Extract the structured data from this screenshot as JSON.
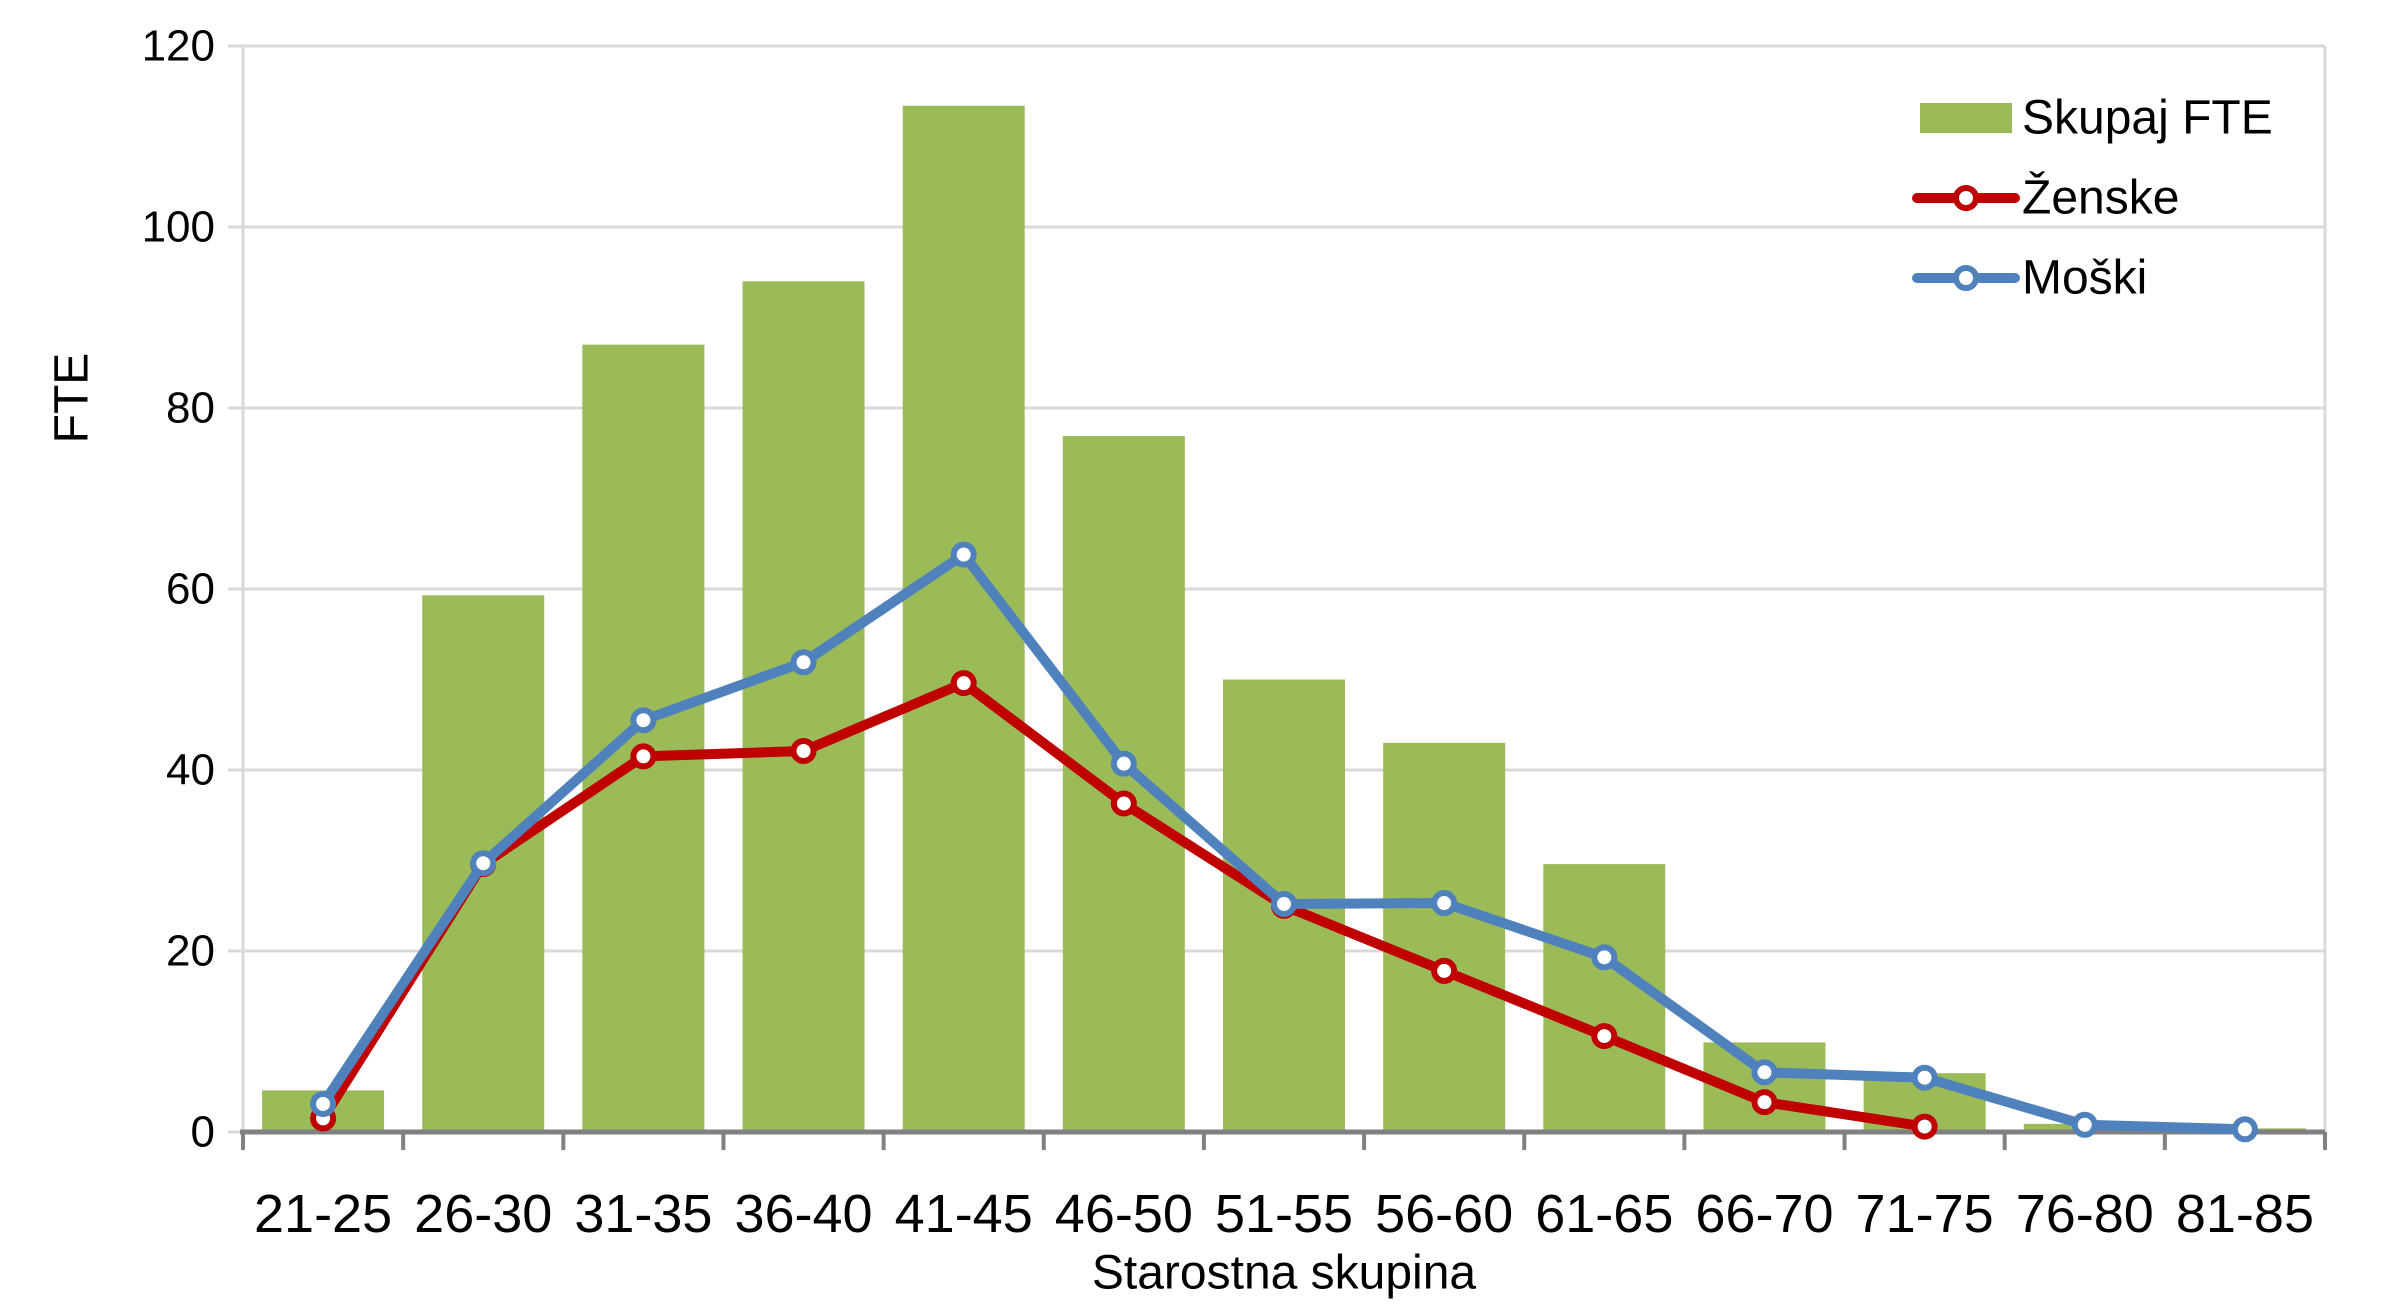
{
  "chart_data": {
    "type": "combo",
    "title": "",
    "xlabel": "Starostna skupina",
    "ylabel": "FTE",
    "ylim": [
      0,
      120
    ],
    "ytick_step": 20,
    "yticks": [
      "0",
      "20",
      "40",
      "60",
      "80",
      "100",
      "120"
    ],
    "grid": true,
    "legend_position": "top-right",
    "categories": [
      "21-25",
      "26-30",
      "31-35",
      "36-40",
      "41-45",
      "46-50",
      "51-55",
      "56-60",
      "61-65",
      "66-70",
      "71-75",
      "76-80",
      "81-85"
    ],
    "series": [
      {
        "name": "Skupaj FTE",
        "type": "bar",
        "color": "#9BBB59",
        "values": [
          4.6,
          59.3,
          87.0,
          94.0,
          113.4,
          76.9,
          50.0,
          43.0,
          29.6,
          9.9,
          6.5,
          0.9,
          0.4
        ]
      },
      {
        "name": "Ženske",
        "type": "line",
        "color": "#C00000",
        "values": [
          1.5,
          29.6,
          41.5,
          42.1,
          49.6,
          36.3,
          25.0,
          17.8,
          10.6,
          3.3,
          0.6,
          null,
          null
        ]
      },
      {
        "name": "Moški",
        "type": "line",
        "color": "#4F81BD",
        "values": [
          3.1,
          29.7,
          45.5,
          51.9,
          63.8,
          40.7,
          25.2,
          25.3,
          19.3,
          6.6,
          6.0,
          0.8,
          0.3
        ]
      }
    ],
    "colors": {
      "gridline": "#D9D9D9",
      "axis_line": "#808080",
      "plot_border": "#D9D9D9",
      "text": "#000000",
      "marker_fill": "#FFFFFF"
    }
  }
}
